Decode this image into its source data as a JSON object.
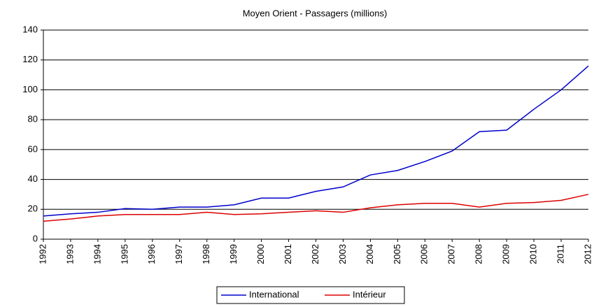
{
  "chart_data": {
    "type": "line",
    "title": "Moyen Orient - Passagers (millions)",
    "categories": [
      "1992",
      "1993",
      "1994",
      "1995",
      "1996",
      "1997",
      "1998",
      "1999",
      "2000",
      "2001",
      "2002",
      "2003",
      "2004",
      "2005",
      "2006",
      "2007",
      "2008",
      "2009",
      "2010",
      "2011",
      "2012"
    ],
    "series": [
      {
        "name": "International",
        "color": "#0000cc",
        "values": [
          15.5,
          17,
          18,
          20.5,
          20,
          21.5,
          21.5,
          23,
          27.5,
          27.5,
          32,
          35,
          43,
          46,
          52,
          59,
          72,
          73,
          87,
          100,
          116
        ]
      },
      {
        "name": "Intérieur",
        "color": "#dd0000",
        "values": [
          12,
          13.5,
          15.5,
          16.5,
          16.5,
          16.5,
          18,
          16.5,
          17,
          18,
          19,
          18,
          21,
          23,
          24,
          24,
          21.5,
          24,
          24.5,
          26,
          30
        ]
      }
    ],
    "ylim": [
      0,
      140
    ],
    "yticks": [
      0,
      20,
      40,
      60,
      80,
      100,
      120,
      140
    ],
    "grid": true,
    "legend": "bottom"
  }
}
